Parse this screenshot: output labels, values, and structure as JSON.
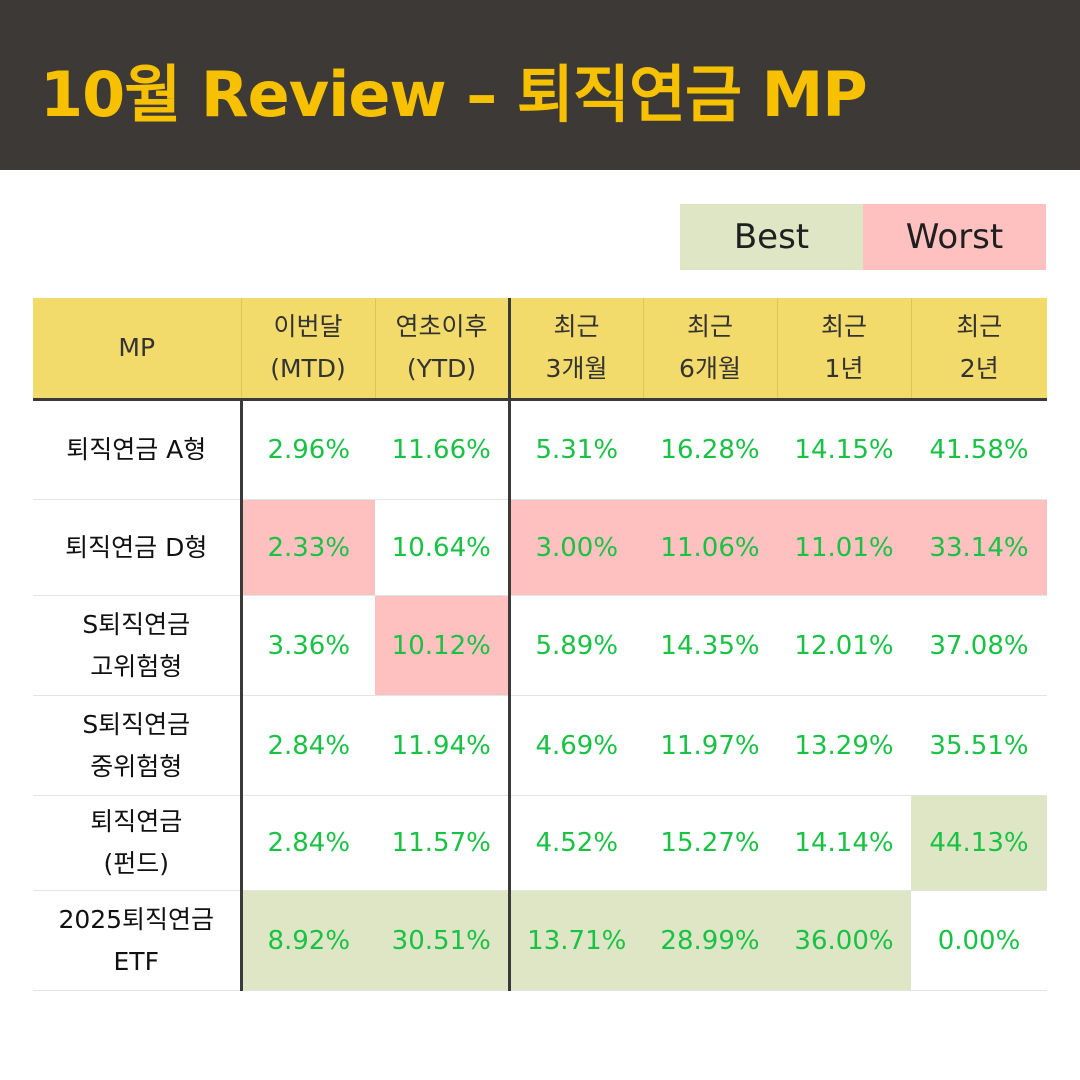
{
  "title": "10월 Review – 퇴직연금 MP",
  "legend": {
    "best": "Best",
    "worst": "Worst"
  },
  "colors": {
    "best": "#dfe6c5",
    "worst": "#ffc0c0",
    "header": "#f2da6b",
    "value": "#19c244"
  },
  "table": {
    "headers": [
      {
        "line1": "MP",
        "line2": ""
      },
      {
        "line1": "이번달",
        "line2": "(MTD)"
      },
      {
        "line1": "연초이후",
        "line2": "(YTD)"
      },
      {
        "line1": "최근",
        "line2": "3개월"
      },
      {
        "line1": "최근",
        "line2": "6개월"
      },
      {
        "line1": "최근",
        "line2": "1년"
      },
      {
        "line1": "최근",
        "line2": "2년"
      }
    ],
    "rows": [
      {
        "name": [
          "퇴직연금 A형"
        ],
        "values": [
          "2.96%",
          "11.66%",
          "5.31%",
          "16.28%",
          "14.15%",
          "41.58%"
        ],
        "marks": [
          "",
          "",
          "",
          "",
          "",
          ""
        ]
      },
      {
        "name": [
          "퇴직연금 D형"
        ],
        "values": [
          "2.33%",
          "10.64%",
          "3.00%",
          "11.06%",
          "11.01%",
          "33.14%"
        ],
        "marks": [
          "worst",
          "",
          "worst",
          "worst",
          "worst",
          "worst"
        ]
      },
      {
        "name": [
          "S퇴직연금",
          "고위험형"
        ],
        "values": [
          "3.36%",
          "10.12%",
          "5.89%",
          "14.35%",
          "12.01%",
          "37.08%"
        ],
        "marks": [
          "",
          "worst",
          "",
          "",
          "",
          ""
        ]
      },
      {
        "name": [
          "S퇴직연금",
          "중위험형"
        ],
        "values": [
          "2.84%",
          "11.94%",
          "4.69%",
          "11.97%",
          "13.29%",
          "35.51%"
        ],
        "marks": [
          "",
          "",
          "",
          "",
          "",
          ""
        ]
      },
      {
        "name": [
          "퇴직연금",
          "(펀드)"
        ],
        "values": [
          "2.84%",
          "11.57%",
          "4.52%",
          "15.27%",
          "14.14%",
          "44.13%"
        ],
        "marks": [
          "",
          "",
          "",
          "",
          "",
          "best"
        ]
      },
      {
        "name": [
          "2025퇴직연금",
          "ETF"
        ],
        "values": [
          "8.92%",
          "30.51%",
          "13.71%",
          "28.99%",
          "36.00%",
          "0.00%"
        ],
        "marks": [
          "best",
          "best",
          "best",
          "best",
          "best",
          ""
        ]
      }
    ]
  }
}
